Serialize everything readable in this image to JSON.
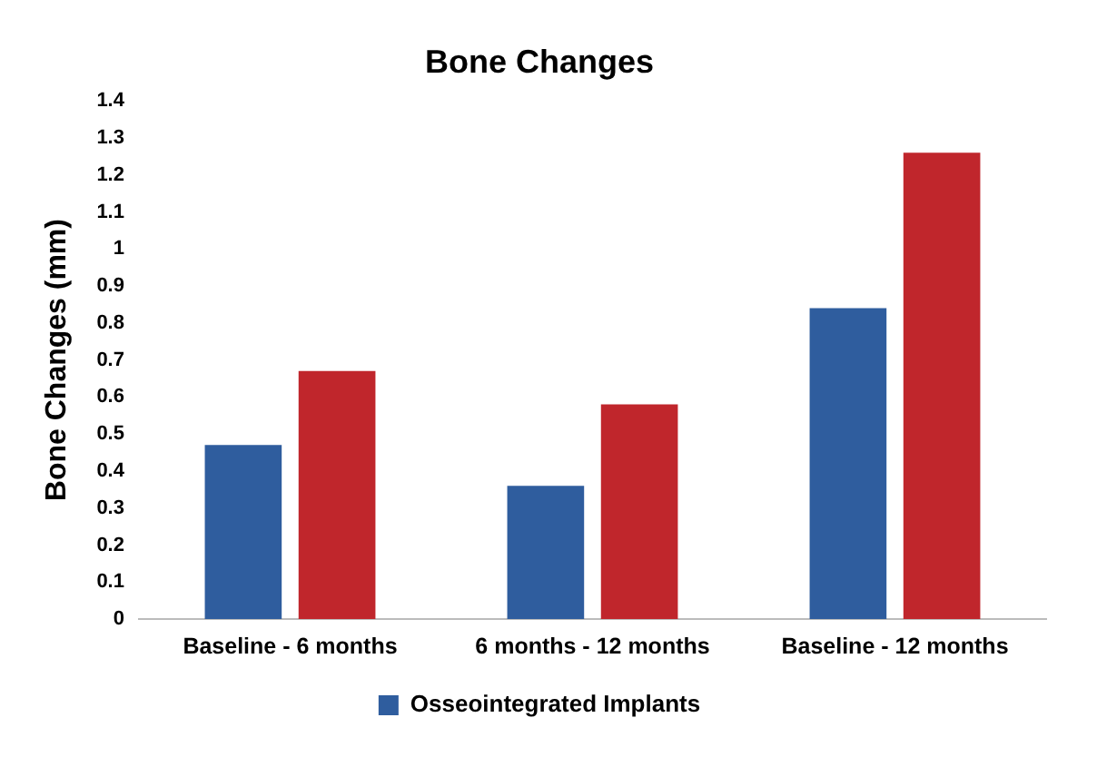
{
  "chart_data": {
    "type": "bar",
    "title": "Bone Changes",
    "ylabel": "Bone Changes (mm)",
    "categories": [
      "Baseline - 6 months",
      "6 months - 12 months",
      "Baseline - 12 months"
    ],
    "series": [
      {
        "name": "Osseointegrated Implants",
        "color": "#2f5d9e",
        "values": [
          0.47,
          0.36,
          0.84
        ]
      },
      {
        "color": "#c0262c",
        "values": [
          0.67,
          0.58,
          1.26
        ]
      }
    ],
    "ylim": [
      0,
      1.4
    ],
    "yticks": [
      0,
      0.1,
      0.2,
      0.3,
      0.4,
      0.5,
      0.6,
      0.7,
      0.8,
      0.9,
      1,
      1.1,
      1.2,
      1.3,
      1.4
    ],
    "grid": false,
    "legend": "bottom"
  }
}
